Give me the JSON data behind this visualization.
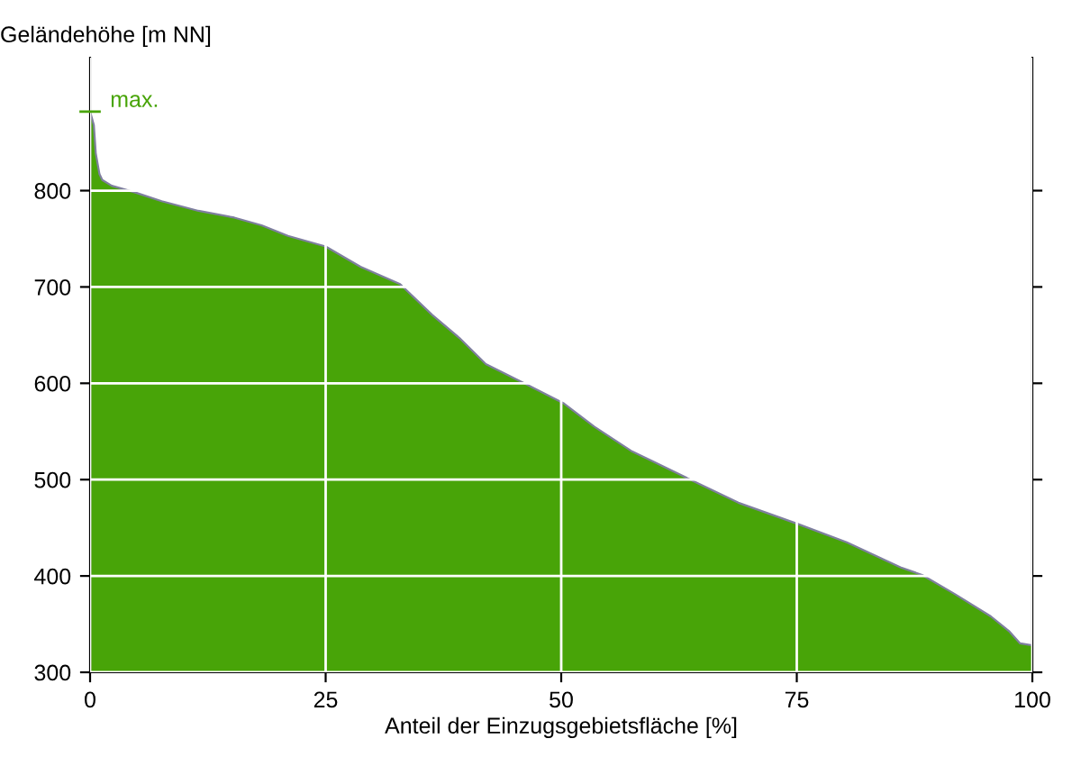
{
  "chart_data": {
    "type": "area",
    "ylabel": "Geländehöhe [m NN]",
    "xlabel": "Anteil der Einzugsgebietsfläche [%]",
    "x": [
      0,
      0.4,
      0.6,
      1,
      1.3,
      2.3,
      4.8,
      7.6,
      11.5,
      15.3,
      18.2,
      21,
      25,
      28.7,
      32.9,
      36.3,
      39.2,
      42,
      46.5,
      50.3,
      53.5,
      57.4,
      63.7,
      68.8,
      75.1,
      80.3,
      86,
      88.3,
      91.8,
      95.6,
      97.5,
      98.7,
      100
    ],
    "series": [
      {
        "color": "#48a408",
        "values": [
          882,
          868,
          839,
          817,
          811,
          805,
          798,
          789,
          779,
          772,
          764,
          753,
          742,
          721,
          703,
          671,
          647,
          620,
          598,
          579,
          555,
          530,
          500,
          476,
          454,
          435,
          409,
          401,
          381,
          358,
          343,
          330,
          328
        ]
      }
    ],
    "xlim": [
      0,
      100
    ],
    "xticks": [
      0,
      25,
      50,
      75,
      100
    ],
    "ylim": [
      300,
      938
    ],
    "yticks": [
      300,
      400,
      500,
      600,
      700,
      800
    ],
    "grid": true,
    "annotations": [
      {
        "text": "max.",
        "x": 0,
        "y": 882
      }
    ]
  }
}
